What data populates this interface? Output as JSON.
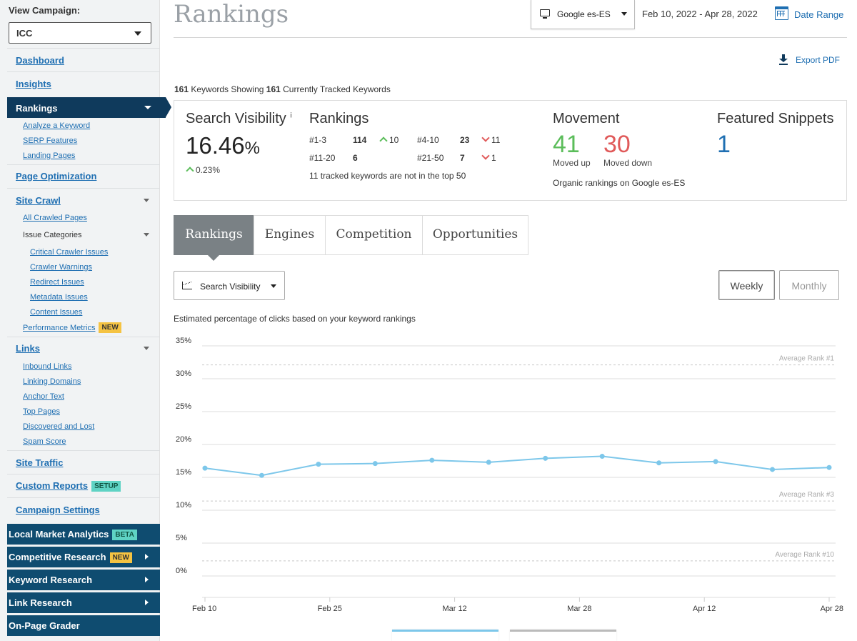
{
  "sidebar": {
    "view_campaign_label": "View Campaign:",
    "campaign_value": "ICC",
    "dashboard": "Dashboard",
    "insights": "Insights",
    "rankings": "Rankings",
    "rankings_sub": [
      "Analyze a Keyword",
      "SERP Features",
      "Landing Pages"
    ],
    "page_optimization": "Page Optimization",
    "site_crawl": "Site Crawl",
    "all_crawled_pages": "All Crawled Pages",
    "issue_categories": "Issue Categories",
    "issue_sub": [
      "Critical Crawler Issues",
      "Crawler Warnings",
      "Redirect Issues",
      "Metadata Issues",
      "Content Issues"
    ],
    "performance_metrics": "Performance Metrics",
    "badge_new": "NEW",
    "links": "Links",
    "links_sub": [
      "Inbound Links",
      "Linking Domains",
      "Anchor Text",
      "Top Pages",
      "Discovered and Lost",
      "Spam Score"
    ],
    "site_traffic": "Site Traffic",
    "custom_reports": "Custom Reports",
    "badge_setup": "SETUP",
    "campaign_settings": "Campaign Settings",
    "local_market": "Local Market Analytics",
    "badge_beta": "BETA",
    "competitive_research": "Competitive Research",
    "keyword_research": "Keyword Research",
    "link_research": "Link Research",
    "on_page_grader": "On-Page Grader"
  },
  "header": {
    "title": "Rankings",
    "engine": "Google es-ES",
    "date_range": "Feb 10, 2022 - Apr 28, 2022",
    "date_range_link": "Date Range",
    "export": "Export PDF"
  },
  "summary": {
    "count_showing": "161",
    "text_showing": " Keywords Showing ",
    "count_tracked": "161",
    "text_tracked": " Currently Tracked Keywords"
  },
  "stats": {
    "search_visibility_title": "Search Visibility",
    "info_marker": "i",
    "visibility_value": "16.46",
    "visibility_unit": "%",
    "visibility_change": "0.23%",
    "rankings_title": "Rankings",
    "r1_label": "#1-3",
    "r1_value": "114",
    "r1_change": "10",
    "r2_label": "#4-10",
    "r2_value": "23",
    "r2_change": "11",
    "r3_label": "#11-20",
    "r3_value": "6",
    "r4_label": "#21-50",
    "r4_value": "7",
    "r4_change": "1",
    "not_top50": "11 tracked keywords are not in the top 50",
    "movement_title": "Movement",
    "moved_up": "41",
    "moved_up_label": "Moved up",
    "moved_down": "30",
    "moved_down_label": "Moved down",
    "movement_note": "Organic rankings on Google es-ES",
    "snippets_title": "Featured Snippets",
    "snippets_value": "1"
  },
  "tabs": [
    "Rankings",
    "Engines",
    "Competition",
    "Opportunities"
  ],
  "controls": {
    "metric": "Search Visibility",
    "weekly": "Weekly",
    "monthly": "Monthly",
    "description": "Estimated percentage of clicks based on your keyword rankings"
  },
  "colors": {
    "line": "#7dc7ea",
    "up": "#5bbd5a",
    "down": "#e05a5a",
    "accent": "#1f6fb2",
    "nav_dark": "#0f4c70"
  },
  "chart_data": {
    "type": "line",
    "y_tick_labels": [
      "35%",
      "30%",
      "25%",
      "20%",
      "15%",
      "10%",
      "5%",
      "0%"
    ],
    "ylim": [
      0,
      35
    ],
    "x_tick_labels": [
      "Feb 10",
      "Feb 25",
      "Mar 12",
      "Mar 28",
      "Apr 12",
      "Apr 28"
    ],
    "x": [
      "Feb 10",
      "Feb 17",
      "Feb 24",
      "Mar 3",
      "Mar 10",
      "Mar 17",
      "Mar 24",
      "Mar 31",
      "Apr 7",
      "Apr 14",
      "Apr 21",
      "Apr 28"
    ],
    "series": [
      {
        "values": [
          16.4,
          15.3,
          17.0,
          17.1,
          17.6,
          17.3,
          17.9,
          18.2,
          17.2,
          17.4,
          16.2,
          16.5
        ]
      }
    ],
    "reference_lines": [
      {
        "label": "Average Rank #1",
        "value": 32.1
      },
      {
        "label": "Average Rank #3",
        "value": 11.4
      },
      {
        "label": "Average Rank #10",
        "value": 2.3
      }
    ],
    "grid": true
  }
}
